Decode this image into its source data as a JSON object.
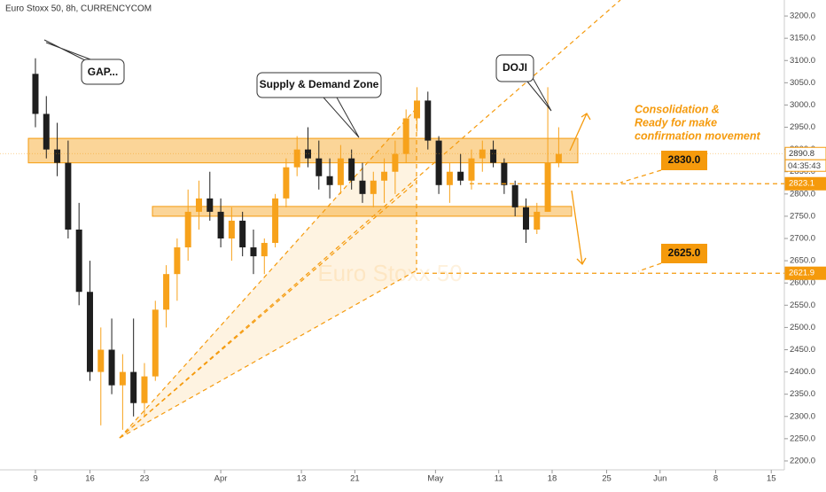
{
  "chart_data": {
    "type": "candlestick",
    "title": "Euro Stoxx 50, 8h, CURRENCYCOM",
    "watermark": "Euro Stoxx 50",
    "up_color": "#f7a21b",
    "down_color": "#1e1e1e",
    "x": [
      0,
      1,
      2,
      3,
      4,
      5,
      6,
      7,
      8,
      9,
      10,
      11,
      12,
      13,
      14,
      15,
      16,
      17,
      18,
      19,
      20,
      21,
      22,
      23,
      24,
      25,
      26,
      27,
      28,
      29,
      30,
      31,
      32,
      33,
      34,
      35,
      36,
      37,
      38,
      39,
      40,
      41,
      42,
      43,
      44,
      45,
      46,
      47,
      48
    ],
    "open": [
      3070,
      2980,
      2900,
      2870,
      2720,
      2580,
      2400,
      2450,
      2370,
      2400,
      2330,
      2390,
      2540,
      2620,
      2680,
      2760,
      2790,
      2760,
      2700,
      2740,
      2680,
      2660,
      2690,
      2790,
      2860,
      2900,
      2880,
      2840,
      2820,
      2880,
      2830,
      2800,
      2830,
      2850,
      2890,
      2970,
      3010,
      2920,
      2820,
      2850,
      2830,
      2880,
      2900,
      2870,
      2820,
      2770,
      2720,
      2760,
      2870
    ],
    "high": [
      3105,
      3020,
      2960,
      2920,
      2780,
      2650,
      2500,
      2520,
      2440,
      2520,
      2420,
      2560,
      2640,
      2700,
      2810,
      2830,
      2850,
      2790,
      2770,
      2760,
      2720,
      2700,
      2800,
      2880,
      2930,
      2950,
      2920,
      2880,
      2910,
      2900,
      2870,
      2850,
      2880,
      2920,
      2990,
      3040,
      3030,
      2930,
      2870,
      2890,
      2900,
      2920,
      2920,
      2880,
      2830,
      2790,
      2780,
      3040,
      2950
    ],
    "low": [
      2950,
      2880,
      2840,
      2700,
      2550,
      2380,
      2280,
      2350,
      2270,
      2300,
      2300,
      2380,
      2500,
      2560,
      2650,
      2720,
      2740,
      2680,
      2650,
      2660,
      2620,
      2620,
      2680,
      2770,
      2840,
      2860,
      2810,
      2790,
      2800,
      2810,
      2780,
      2770,
      2780,
      2800,
      2870,
      2940,
      2900,
      2800,
      2780,
      2820,
      2810,
      2850,
      2860,
      2800,
      2750,
      2690,
      2710,
      2760,
      2860
    ],
    "close": [
      2980,
      2900,
      2870,
      2720,
      2580,
      2400,
      2450,
      2370,
      2400,
      2330,
      2390,
      2540,
      2620,
      2680,
      2760,
      2790,
      2760,
      2700,
      2740,
      2680,
      2660,
      2690,
      2790,
      2860,
      2900,
      2880,
      2840,
      2820,
      2880,
      2830,
      2800,
      2830,
      2850,
      2890,
      2970,
      3010,
      2920,
      2820,
      2850,
      2830,
      2880,
      2900,
      2870,
      2820,
      2770,
      2720,
      2760,
      2870,
      2890
    ],
    "xlim": [
      -3.25,
      68.7
    ],
    "xticks": [
      {
        "value": 0,
        "label": "9"
      },
      {
        "value": 5,
        "label": "16"
      },
      {
        "value": 10,
        "label": "23"
      },
      {
        "value": 17,
        "label": "Apr"
      },
      {
        "value": 24.4,
        "label": "13"
      },
      {
        "value": 29.3,
        "label": "21"
      },
      {
        "value": 36.7,
        "label": "May"
      },
      {
        "value": 42.5,
        "label": "11"
      },
      {
        "value": 47.4,
        "label": "18"
      },
      {
        "value": 52.4,
        "label": "25"
      },
      {
        "value": 57.3,
        "label": "Jun"
      },
      {
        "value": 62.4,
        "label": "8"
      },
      {
        "value": 67.5,
        "label": "15"
      }
    ],
    "ylim": [
      2180,
      3236
    ],
    "yticks": [
      {
        "value": 2200,
        "label": "2200.0"
      },
      {
        "value": 2250,
        "label": "2250.0"
      },
      {
        "value": 2300,
        "label": "2300.0"
      },
      {
        "value": 2350,
        "label": "2350.0"
      },
      {
        "value": 2400,
        "label": "2400.0"
      },
      {
        "value": 2450,
        "label": "2450.0"
      },
      {
        "value": 2500,
        "label": "2500.0"
      },
      {
        "value": 2550,
        "label": "2550.0"
      },
      {
        "value": 2600,
        "label": "2600.0"
      },
      {
        "value": 2650,
        "label": "2650.0"
      },
      {
        "value": 2700,
        "label": "2700.0"
      },
      {
        "value": 2750,
        "label": "2750.0"
      },
      {
        "value": 2800,
        "label": "2800.0"
      },
      {
        "value": 2850,
        "label": "2850.0"
      },
      {
        "value": 2900,
        "label": "2900.0"
      },
      {
        "value": 2950,
        "label": "2950.0"
      },
      {
        "value": 3000,
        "label": "3000.0"
      },
      {
        "value": 3050,
        "label": "3050.0"
      },
      {
        "value": 3100,
        "label": "3100.0"
      },
      {
        "value": 3150,
        "label": "3150.0"
      },
      {
        "value": 3200,
        "label": "3200.0"
      }
    ],
    "zones": [
      {
        "low": 2870,
        "high": 2925
      },
      {
        "low": 2750,
        "high": 2772
      }
    ],
    "price_tags": [
      2890.8,
      2823.1,
      2621.9
    ],
    "countdown": "04:35:43",
    "level_labels": [
      {
        "value": 2830,
        "label": "2830.0"
      },
      {
        "value": 2625,
        "label": "2625.0"
      }
    ],
    "annotations": [
      "GAP...",
      "Supply & Demand Zone",
      "DOJI"
    ],
    "note_lines": [
      "Consolidation &",
      "Ready for make",
      "confirmation movement"
    ]
  }
}
